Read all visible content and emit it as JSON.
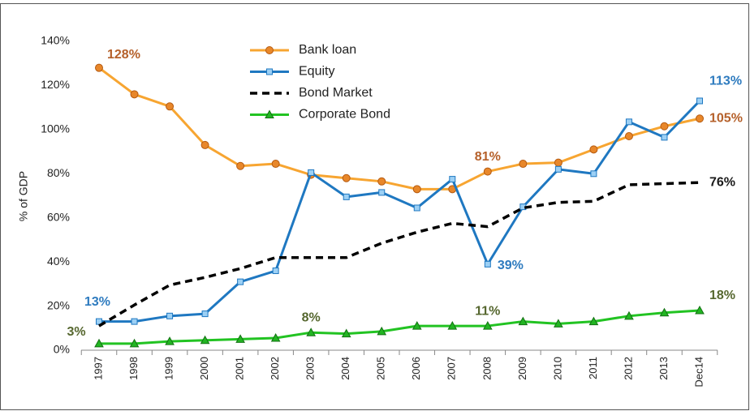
{
  "chart_data": {
    "type": "line",
    "y_label": "% of GDP",
    "categories": [
      "1997",
      "1998",
      "1999",
      "2000",
      "2001",
      "2002",
      "2003",
      "2004",
      "2005",
      "2006",
      "2007",
      "2008",
      "2009",
      "2010",
      "2011",
      "2012",
      "2013",
      "Dec14"
    ],
    "ylim": [
      0,
      140
    ],
    "yticks": [
      {
        "value": 0,
        "label": "0%"
      },
      {
        "value": 20,
        "label": "20%"
      },
      {
        "value": 40,
        "label": "40%"
      },
      {
        "value": 60,
        "label": "60%"
      },
      {
        "value": 80,
        "label": "80%"
      },
      {
        "value": 100,
        "label": "100%"
      },
      {
        "value": 120,
        "label": "120%"
      },
      {
        "value": 140,
        "label": "140%"
      }
    ],
    "legend": "top",
    "series": [
      {
        "name": "Bank loan",
        "color": "#f7a531",
        "marker": "circle",
        "label_color": "#b5602a",
        "values": [
          128,
          116,
          110.5,
          93,
          83.5,
          84.5,
          79.5,
          78,
          76.5,
          73,
          73,
          81,
          84.5,
          85,
          91,
          97,
          101.5,
          105
        ],
        "value_labels": [
          "128%",
          null,
          null,
          null,
          null,
          null,
          null,
          null,
          null,
          null,
          null,
          "81%",
          null,
          null,
          null,
          null,
          null,
          "105%"
        ]
      },
      {
        "name": "Equity",
        "color": "#1f78c1",
        "marker": "square",
        "label_color": "#2e7bbf",
        "values": [
          13,
          13,
          15.5,
          16.5,
          31,
          36,
          80.5,
          69.5,
          71.5,
          64.5,
          77.5,
          39,
          65,
          82,
          80,
          103.5,
          96.5,
          113
        ],
        "value_labels": [
          "13%",
          null,
          null,
          null,
          null,
          null,
          null,
          null,
          null,
          null,
          null,
          "39%",
          null,
          null,
          null,
          null,
          null,
          "113%"
        ]
      },
      {
        "name": "Bond Market",
        "color": "#000000",
        "marker": "none",
        "dash": true,
        "label_color": "#1a1a1a",
        "values": [
          11,
          20.5,
          29.5,
          33,
          37,
          42,
          42,
          42,
          48.5,
          53.5,
          57.5,
          56,
          64.5,
          67,
          67.5,
          75,
          75.5,
          76
        ],
        "value_labels": [
          null,
          null,
          null,
          null,
          null,
          null,
          null,
          null,
          null,
          null,
          null,
          null,
          null,
          null,
          null,
          null,
          null,
          "76%"
        ]
      },
      {
        "name": "Corporate Bond",
        "color": "#22c322",
        "marker": "triangle",
        "label_color": "#56672f",
        "values": [
          3,
          3,
          4,
          4.5,
          5,
          5.5,
          8,
          7.5,
          8.5,
          11,
          11,
          11,
          13,
          12,
          13,
          15.5,
          17,
          18
        ],
        "value_labels": [
          "3%",
          null,
          null,
          null,
          null,
          null,
          "8%",
          null,
          null,
          null,
          null,
          "11%",
          null,
          null,
          null,
          null,
          null,
          "18%"
        ]
      }
    ]
  }
}
